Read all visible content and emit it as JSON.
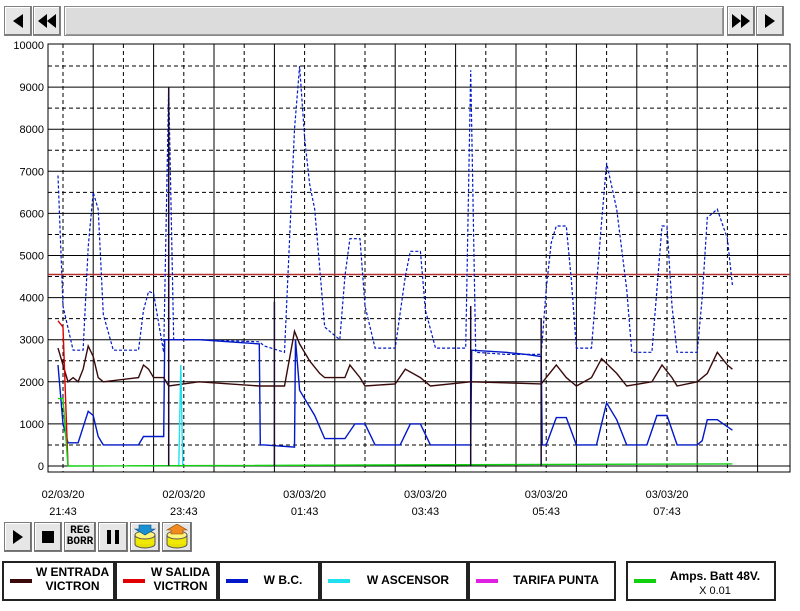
{
  "toolbar": {
    "scroll_left": "◀",
    "rewind": "◀◀",
    "fast_forward": "▶▶",
    "scroll_right": "▶"
  },
  "controls": {
    "play": "play",
    "stop": "stop",
    "reg_label_top": "REG",
    "reg_label_bottom": "BORR",
    "pause": "pause"
  },
  "legend": [
    {
      "label": "W ENTRADA VICTRON",
      "color": "#3a0a0a",
      "sub": ""
    },
    {
      "label": "W SALIDA VICTRON",
      "color": "#e00000",
      "sub": ""
    },
    {
      "label": "W B.C.",
      "color": "#0018c8",
      "sub": ""
    },
    {
      "label": "W ASCENSOR",
      "color": "#20e0f0",
      "sub": ""
    },
    {
      "label": "TARIFA PUNTA",
      "color": "#e020e0",
      "sub": ""
    },
    {
      "label": "Amps. Batt 48V.",
      "color": "#10d010",
      "sub": "X 0.01"
    }
  ],
  "chart_data": {
    "type": "line",
    "ylim": [
      0,
      10000
    ],
    "yticks": [
      "0",
      "1000",
      "2000",
      "3000",
      "4000",
      "5000",
      "6000",
      "7000",
      "8000",
      "9000",
      "10000"
    ],
    "xticks": [
      {
        "date": "02/03/20",
        "time": "21:43"
      },
      {
        "date": "02/03/20",
        "time": "23:43"
      },
      {
        "date": "03/03/20",
        "time": "01:43"
      },
      {
        "date": "03/03/20",
        "time": "03:43"
      },
      {
        "date": "03/03/20",
        "time": "05:43"
      },
      {
        "date": "03/03/20",
        "time": "07:43"
      }
    ],
    "grid": true,
    "threshold_line": {
      "value": 4550,
      "color": "#b03030"
    },
    "series": [
      {
        "name": "W B.C.",
        "color": "#0018c8",
        "style": "dashed",
        "points": [
          [
            "21:38",
            6900
          ],
          [
            "21:43",
            3800
          ],
          [
            "21:53",
            2750
          ],
          [
            "22:03",
            2750
          ],
          [
            "22:08",
            5200
          ],
          [
            "22:13",
            6500
          ],
          [
            "22:18",
            6100
          ],
          [
            "22:23",
            3600
          ],
          [
            "22:33",
            2750
          ],
          [
            "22:58",
            2750
          ],
          [
            "23:03",
            3700
          ],
          [
            "23:08",
            4150
          ],
          [
            "23:13",
            4100
          ],
          [
            "23:18",
            3400
          ],
          [
            "23:23",
            2700
          ],
          [
            "23:28",
            9000
          ],
          [
            "23:33",
            3000
          ],
          [
            "23:58",
            3000
          ],
          [
            "00:58",
            2950
          ],
          [
            "01:03",
            2850
          ],
          [
            "01:23",
            2700
          ],
          [
            "01:33",
            8000
          ],
          [
            "01:38",
            9500
          ],
          [
            "01:43",
            7800
          ],
          [
            "01:48",
            6700
          ],
          [
            "01:53",
            6100
          ],
          [
            "02:03",
            3300
          ],
          [
            "02:18",
            3000
          ],
          [
            "02:23",
            4500
          ],
          [
            "02:28",
            5400
          ],
          [
            "02:38",
            5400
          ],
          [
            "02:43",
            3800
          ],
          [
            "02:53",
            2800
          ],
          [
            "03:13",
            2800
          ],
          [
            "03:23",
            4500
          ],
          [
            "03:28",
            5100
          ],
          [
            "03:38",
            5100
          ],
          [
            "03:43",
            3700
          ],
          [
            "03:53",
            2800
          ],
          [
            "04:23",
            2800
          ],
          [
            "04:28",
            9400
          ],
          [
            "04:33",
            2700
          ],
          [
            "05:03",
            2650
          ],
          [
            "05:38",
            2650
          ],
          [
            "05:43",
            4200
          ],
          [
            "05:48",
            5300
          ],
          [
            "05:53",
            5700
          ],
          [
            "06:03",
            5700
          ],
          [
            "06:08",
            4400
          ],
          [
            "06:13",
            2800
          ],
          [
            "06:28",
            2800
          ],
          [
            "06:38",
            5800
          ],
          [
            "06:43",
            7200
          ],
          [
            "06:53",
            6100
          ],
          [
            "07:03",
            4200
          ],
          [
            "07:08",
            2700
          ],
          [
            "07:28",
            2700
          ],
          [
            "07:38",
            5700
          ],
          [
            "07:43",
            5700
          ],
          [
            "07:48",
            3800
          ],
          [
            "07:53",
            2700
          ],
          [
            "08:13",
            2700
          ],
          [
            "08:18",
            4000
          ],
          [
            "08:23",
            5900
          ],
          [
            "08:33",
            6100
          ],
          [
            "08:43",
            5400
          ],
          [
            "08:48",
            4300
          ]
        ]
      },
      {
        "name": "W B.C.",
        "color": "#0018c8",
        "style": "solid",
        "points": [
          [
            "21:38",
            2400
          ],
          [
            "21:43",
            1000
          ],
          [
            "21:48",
            550
          ],
          [
            "21:58",
            550
          ],
          [
            "22:08",
            1300
          ],
          [
            "22:13",
            1200
          ],
          [
            "22:18",
            700
          ],
          [
            "22:23",
            500
          ],
          [
            "22:58",
            500
          ],
          [
            "23:03",
            700
          ],
          [
            "23:23",
            700
          ],
          [
            "23:24",
            3000
          ],
          [
            "23:28",
            3000
          ],
          [
            "23:58",
            3000
          ],
          [
            "00:28",
            2950
          ],
          [
            "00:58",
            2900
          ],
          [
            "00:59",
            500
          ],
          [
            "01:03",
            500
          ],
          [
            "01:33",
            450
          ],
          [
            "01:34",
            3000
          ],
          [
            "01:38",
            1800
          ],
          [
            "01:53",
            1200
          ],
          [
            "02:03",
            650
          ],
          [
            "02:23",
            650
          ],
          [
            "02:33",
            1000
          ],
          [
            "02:43",
            1000
          ],
          [
            "02:53",
            500
          ],
          [
            "03:18",
            500
          ],
          [
            "03:28",
            1000
          ],
          [
            "03:38",
            1000
          ],
          [
            "03:48",
            500
          ],
          [
            "04:28",
            500
          ],
          [
            "04:29",
            2750
          ],
          [
            "05:03",
            2700
          ],
          [
            "05:23",
            2650
          ],
          [
            "05:38",
            2600
          ],
          [
            "05:39",
            500
          ],
          [
            "05:43",
            500
          ],
          [
            "05:53",
            1150
          ],
          [
            "06:03",
            1150
          ],
          [
            "06:13",
            500
          ],
          [
            "06:33",
            500
          ],
          [
            "06:43",
            1500
          ],
          [
            "06:53",
            1100
          ],
          [
            "07:03",
            500
          ],
          [
            "07:23",
            500
          ],
          [
            "07:33",
            1200
          ],
          [
            "07:43",
            1200
          ],
          [
            "07:53",
            500
          ],
          [
            "08:13",
            500
          ],
          [
            "08:18",
            600
          ],
          [
            "08:23",
            1100
          ],
          [
            "08:33",
            1100
          ],
          [
            "08:48",
            850
          ]
        ]
      },
      {
        "name": "W ENTRADA VICTRON",
        "color": "#3a0a0a",
        "style": "solid",
        "points": [
          [
            "21:38",
            2800
          ],
          [
            "21:43",
            2400
          ],
          [
            "21:48",
            2000
          ],
          [
            "21:53",
            2100
          ],
          [
            "21:58",
            2000
          ],
          [
            "22:03",
            2300
          ],
          [
            "22:08",
            2850
          ],
          [
            "22:13",
            2600
          ],
          [
            "22:18",
            2100
          ],
          [
            "22:23",
            2000
          ],
          [
            "22:58",
            2100
          ],
          [
            "23:03",
            2400
          ],
          [
            "23:08",
            2300
          ],
          [
            "23:13",
            2100
          ],
          [
            "23:23",
            2100
          ],
          [
            "23:28",
            1900
          ],
          [
            "23:58",
            2000
          ],
          [
            "00:58",
            1900
          ],
          [
            "01:23",
            1900
          ],
          [
            "01:33",
            3200
          ],
          [
            "01:38",
            2900
          ],
          [
            "01:48",
            2500
          ],
          [
            "01:58",
            2200
          ],
          [
            "02:03",
            2100
          ],
          [
            "02:23",
            2100
          ],
          [
            "02:28",
            2400
          ],
          [
            "02:38",
            2100
          ],
          [
            "02:43",
            1900
          ],
          [
            "03:13",
            1950
          ],
          [
            "03:23",
            2300
          ],
          [
            "03:38",
            2100
          ],
          [
            "03:48",
            1900
          ],
          [
            "04:28",
            2000
          ],
          [
            "05:38",
            1950
          ],
          [
            "05:43",
            2100
          ],
          [
            "05:53",
            2400
          ],
          [
            "06:03",
            2100
          ],
          [
            "06:13",
            1900
          ],
          [
            "06:28",
            2100
          ],
          [
            "06:38",
            2550
          ],
          [
            "06:53",
            2200
          ],
          [
            "07:03",
            1900
          ],
          [
            "07:28",
            2000
          ],
          [
            "07:38",
            2400
          ],
          [
            "07:48",
            2100
          ],
          [
            "07:53",
            1900
          ],
          [
            "08:13",
            2000
          ],
          [
            "08:23",
            2200
          ],
          [
            "08:33",
            2700
          ],
          [
            "08:43",
            2400
          ],
          [
            "08:48",
            2300
          ]
        ]
      },
      {
        "name": "W SALIDA VICTRON",
        "color": "#e00000",
        "style": "solid",
        "points": [
          [
            "21:38",
            3450
          ],
          [
            "21:43",
            3300
          ],
          [
            "21:48",
            0
          ]
        ]
      },
      {
        "name": "W ASCENSOR",
        "color": "#20e0f0",
        "style": "solid",
        "points": [
          [
            "23:38",
            0
          ],
          [
            "23:40",
            2400
          ],
          [
            "23:42",
            0
          ]
        ]
      },
      {
        "name": "Amps. Batt 48V.",
        "color": "#10d010",
        "style": "solid",
        "points": [
          [
            "21:38",
            1600
          ],
          [
            "21:43",
            1600
          ],
          [
            "21:48",
            0
          ],
          [
            "08:48",
            50
          ]
        ]
      }
    ],
    "spikes": [
      {
        "time": "23:28",
        "value": 9000
      },
      {
        "time": "01:13",
        "value": 3900
      },
      {
        "time": "04:28",
        "value": 3800
      },
      {
        "time": "05:38",
        "value": 3500
      }
    ]
  }
}
